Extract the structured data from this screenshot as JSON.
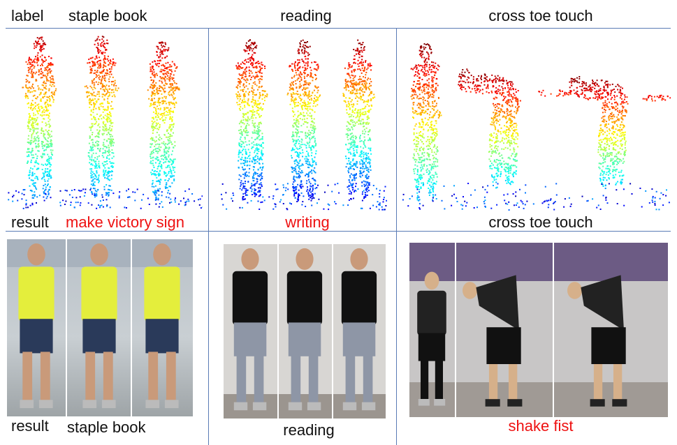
{
  "header": {
    "label_word": "label",
    "col1_label": "staple book",
    "col2_label": "reading",
    "col3_label": "cross toe touch"
  },
  "middle": {
    "result_word": "result",
    "col1_result": "make victory sign",
    "col2_result": "writing",
    "col3_result": "cross toe touch"
  },
  "bottom": {
    "result_word": "result",
    "col1_result": "staple book",
    "col2_result": "reading",
    "col3_result": "shake fist"
  },
  "colors": {
    "correct": "#111111",
    "wrong": "#ee1111",
    "divider": "#5a7bb5"
  }
}
